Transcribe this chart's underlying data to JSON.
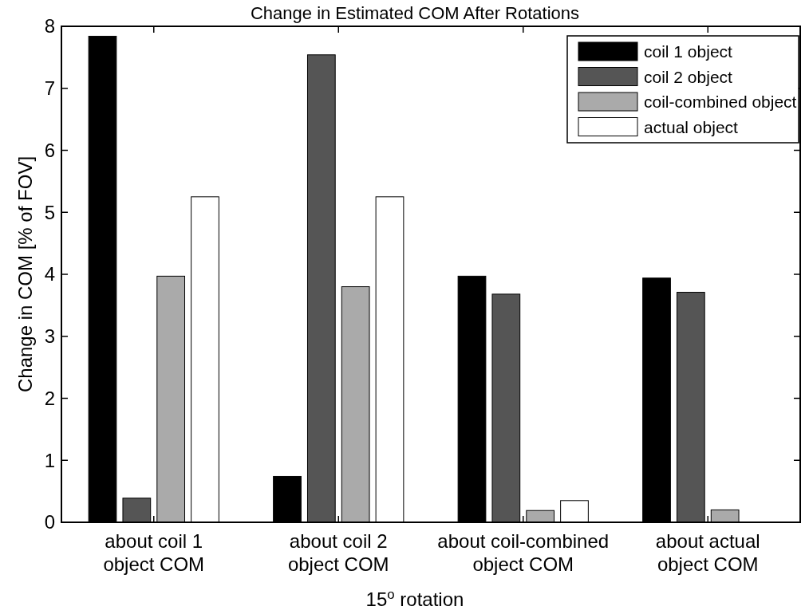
{
  "chart_data": {
    "type": "bar",
    "title": "Change in Estimated COM After Rotations",
    "xlabel": "15$^{o}$ rotation",
    "ylabel": "Change in COM [% of FOV]",
    "categories": [
      "about coil 1\nobject COM",
      "about coil 2\nobject COM",
      "about coil-combined\nobject COM",
      "about actual\nobject COM"
    ],
    "series": [
      {
        "name": "coil 1 object",
        "color": "#000000",
        "values": [
          7.84,
          0.74,
          3.97,
          3.94
        ]
      },
      {
        "name": "coil 2 object",
        "color": "#555555",
        "values": [
          0.39,
          7.54,
          3.68,
          3.71
        ]
      },
      {
        "name": "coil-combined object",
        "color": "#aaaaaa",
        "values": [
          3.97,
          3.8,
          0.19,
          0.2
        ]
      },
      {
        "name": "actual object",
        "color": "#ffffff",
        "values": [
          5.25,
          5.25,
          0.35,
          null
        ]
      }
    ],
    "ylim": [
      0,
      8
    ],
    "yticks": [
      0,
      1,
      2,
      3,
      4,
      5,
      6,
      7,
      8
    ],
    "grid": false,
    "legend": "top right"
  }
}
